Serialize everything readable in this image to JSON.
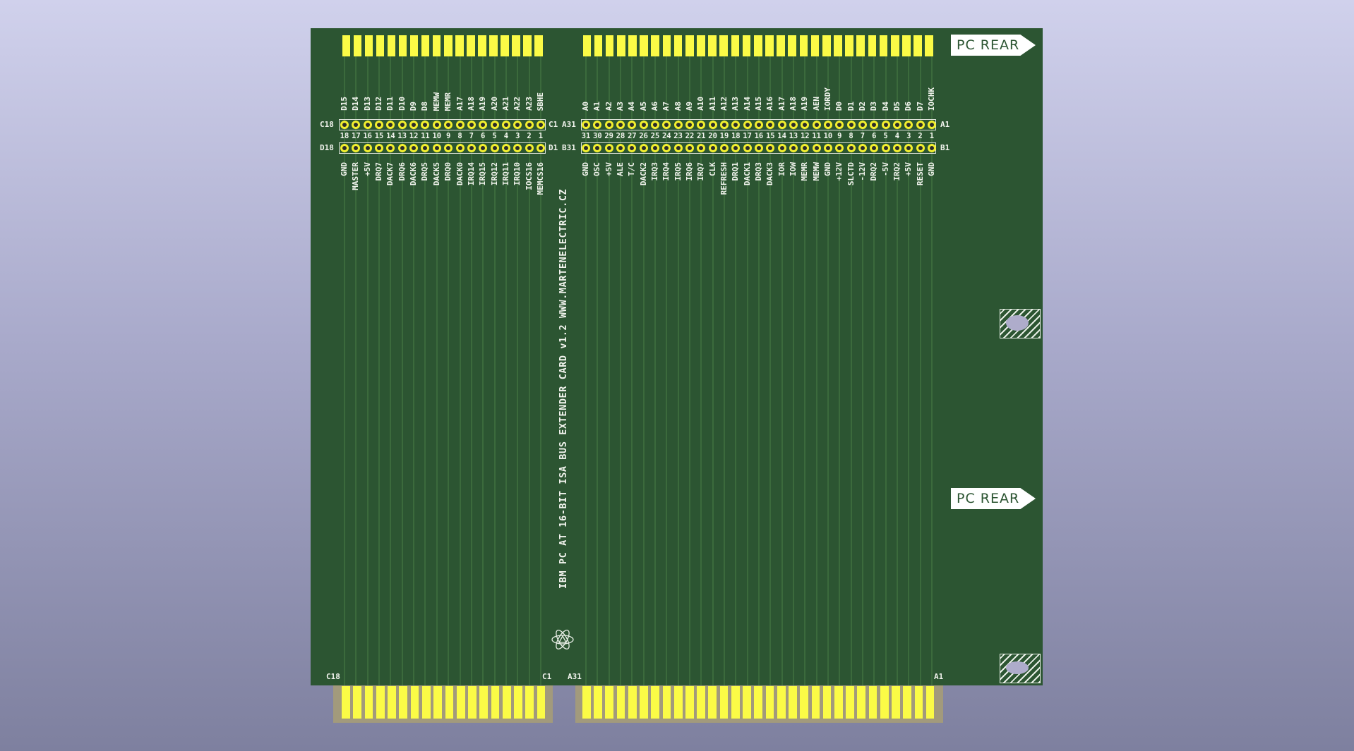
{
  "board": {
    "title_text": "IBM PC AT 16-BIT ISA BUS EXTENDER CARD v1.2 WWW.MARTENELECTRIC.CZ",
    "pc_rear_label": "PC REAR",
    "colors": {
      "soldermask": "#2c5532",
      "gold": "#fbfb46",
      "silkscreen": "#f2f4ee",
      "background": "#c0c1de"
    },
    "logo_icon": "atom-logo-icon"
  },
  "connector_left": {
    "row_top_label_left": "C18",
    "row_top_label_right": "C1",
    "row_bottom_label_left": "D18",
    "row_bottom_label_right": "D1",
    "pin_numbers": [
      "18",
      "17",
      "16",
      "15",
      "14",
      "13",
      "12",
      "11",
      "10",
      "9",
      "8",
      "7",
      "6",
      "5",
      "4",
      "3",
      "2",
      "1"
    ],
    "top_signals": [
      "D15",
      "D14",
      "D13",
      "D12",
      "D11",
      "D10",
      "D9",
      "D8",
      "MEMW",
      "MEMR",
      "A17",
      "A18",
      "A19",
      "A20",
      "A21",
      "A22",
      "A23",
      "SBHE"
    ],
    "bottom_signals": [
      "GND",
      "MASTER",
      "+5V",
      "DRQ7",
      "DACK7",
      "DRQ6",
      "DACK6",
      "DRQ5",
      "DACK5",
      "DRQ0",
      "DACK0",
      "IRQ14",
      "IRQ15",
      "IRQ12",
      "IRQ11",
      "IRQ10",
      "IOCS16",
      "MEMCS16"
    ],
    "edge_label_left": "C18",
    "edge_label_right": "C1"
  },
  "connector_right": {
    "row_top_label_left": "A31",
    "row_top_label_right": "A1",
    "row_bottom_label_left": "B31",
    "row_bottom_label_right": "B1",
    "pin_numbers": [
      "31",
      "30",
      "29",
      "28",
      "27",
      "26",
      "25",
      "24",
      "23",
      "22",
      "21",
      "20",
      "19",
      "18",
      "17",
      "16",
      "15",
      "14",
      "13",
      "12",
      "11",
      "10",
      "9",
      "8",
      "7",
      "6",
      "5",
      "4",
      "3",
      "2",
      "1"
    ],
    "top_signals": [
      "A0",
      "A1",
      "A2",
      "A3",
      "A4",
      "A5",
      "A6",
      "A7",
      "A8",
      "A9",
      "A10",
      "A11",
      "A12",
      "A13",
      "A14",
      "A15",
      "A16",
      "A17",
      "A18",
      "A19",
      "AEN",
      "IORDY",
      "D0",
      "D1",
      "D2",
      "D3",
      "D4",
      "D5",
      "D6",
      "D7",
      "IOCHK"
    ],
    "bottom_signals": [
      "GND",
      "OSC",
      "+5V",
      "ALE",
      "T/C",
      "DACK2",
      "IRQ3",
      "IRQ4",
      "IRQ5",
      "IRQ6",
      "IRQ7",
      "CLK",
      "REFRESH",
      "DRQ1",
      "DACK1",
      "DRQ3",
      "DACK3",
      "IOR",
      "IOW",
      "MEMR",
      "MEMW",
      "GND",
      "+12V",
      "SLCTD",
      "-12V",
      "DRQ2",
      "-5V",
      "IRQ2",
      "+5V",
      "RESET",
      "GND"
    ],
    "edge_label_left": "A31",
    "edge_label_right": "A1"
  }
}
